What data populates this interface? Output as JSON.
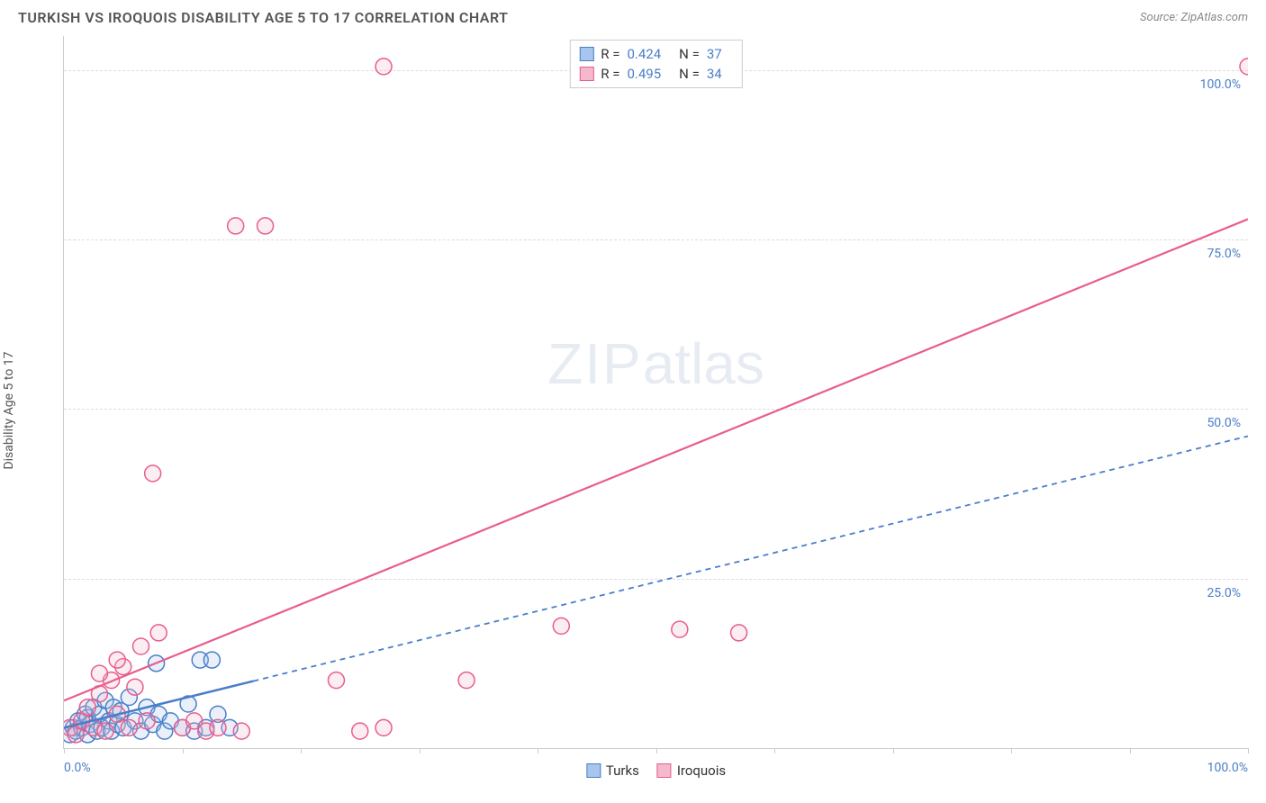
{
  "header": {
    "title": "TURKISH VS IROQUOIS DISABILITY AGE 5 TO 17 CORRELATION CHART",
    "source_label": "Source: ",
    "source_name": "ZipAtlas.com"
  },
  "chart": {
    "type": "scatter",
    "y_axis_label": "Disability Age 5 to 17",
    "xlim": [
      0,
      100
    ],
    "ylim": [
      0,
      105
    ],
    "x_ticks": [
      0,
      10,
      20,
      30,
      40,
      50,
      60,
      70,
      80,
      90,
      100
    ],
    "y_gridlines": [
      25,
      50,
      75,
      100
    ],
    "y_tick_labels": [
      "25.0%",
      "50.0%",
      "75.0%",
      "100.0%"
    ],
    "x_origin_label": "0.0%",
    "x_max_label": "100.0%",
    "background_color": "#ffffff",
    "grid_color": "#dddddd",
    "axis_label_color": "#4a7ec9",
    "marker_radius": 9,
    "marker_stroke_width": 1.5,
    "marker_fill_opacity": 0.25,
    "watermark_text_1": "ZIP",
    "watermark_text_2": "atlas",
    "series": [
      {
        "name": "Turks",
        "color_stroke": "#4a7ec9",
        "color_fill": "#a8c5ed",
        "R": "0.424",
        "N": "37",
        "trendline": {
          "x1": 0,
          "y1": 3,
          "x2": 100,
          "y2": 46,
          "dash": "6 5",
          "width": 1.8,
          "solid_until_x": 16
        },
        "points": [
          [
            0.5,
            2
          ],
          [
            0.8,
            3
          ],
          [
            1,
            2.5
          ],
          [
            1.2,
            4
          ],
          [
            1.5,
            3
          ],
          [
            1.8,
            5
          ],
          [
            2,
            2
          ],
          [
            2,
            4.5
          ],
          [
            2.2,
            3.5
          ],
          [
            2.5,
            6
          ],
          [
            2.8,
            2.5
          ],
          [
            3,
            5
          ],
          [
            3.2,
            3
          ],
          [
            3.5,
            7
          ],
          [
            3.8,
            4
          ],
          [
            4,
            2.5
          ],
          [
            4.2,
            6
          ],
          [
            4.5,
            3.5
          ],
          [
            4.8,
            5.5
          ],
          [
            5,
            3
          ],
          [
            5.5,
            7.5
          ],
          [
            6,
            4
          ],
          [
            6.5,
            2.5
          ],
          [
            7,
            6
          ],
          [
            7.5,
            3.5
          ],
          [
            7.8,
            12.5
          ],
          [
            8,
            5
          ],
          [
            8.5,
            2.5
          ],
          [
            9,
            4
          ],
          [
            10,
            3
          ],
          [
            10.5,
            6.5
          ],
          [
            11,
            2.5
          ],
          [
            11.5,
            13
          ],
          [
            12,
            3
          ],
          [
            12.5,
            13
          ],
          [
            13,
            5
          ],
          [
            14,
            3
          ]
        ]
      },
      {
        "name": "Iroquois",
        "color_stroke": "#e85d8f",
        "color_fill": "#f5b8cd",
        "R": "0.495",
        "N": "34",
        "trendline": {
          "x1": 0,
          "y1": 7,
          "x2": 100,
          "y2": 78,
          "dash": "none",
          "width": 2.2
        },
        "points": [
          [
            0.5,
            3
          ],
          [
            1,
            2
          ],
          [
            1.5,
            4
          ],
          [
            2,
            6
          ],
          [
            2.5,
            3
          ],
          [
            3,
            8
          ],
          [
            3.5,
            2.5
          ],
          [
            4,
            10
          ],
          [
            4.5,
            5
          ],
          [
            5,
            12
          ],
          [
            5.5,
            3
          ],
          [
            6,
            9
          ],
          [
            6.5,
            15
          ],
          [
            7,
            4
          ],
          [
            8,
            17
          ],
          [
            7.5,
            40.5
          ],
          [
            10,
            3
          ],
          [
            11,
            4
          ],
          [
            12,
            2.5
          ],
          [
            13,
            3
          ],
          [
            14.5,
            77
          ],
          [
            15,
            2.5
          ],
          [
            17,
            77
          ],
          [
            23,
            10
          ],
          [
            25,
            2.5
          ],
          [
            27,
            3
          ],
          [
            27,
            100.5
          ],
          [
            34,
            10
          ],
          [
            42,
            18
          ],
          [
            52,
            17.5
          ],
          [
            57,
            17
          ],
          [
            100,
            100.5
          ],
          [
            3,
            11
          ],
          [
            4.5,
            13
          ]
        ]
      }
    ],
    "legend_bottom": [
      {
        "label": "Turks",
        "fill": "#a8c5ed",
        "stroke": "#4a7ec9"
      },
      {
        "label": "Iroquois",
        "fill": "#f5b8cd",
        "stroke": "#e85d8f"
      }
    ]
  }
}
